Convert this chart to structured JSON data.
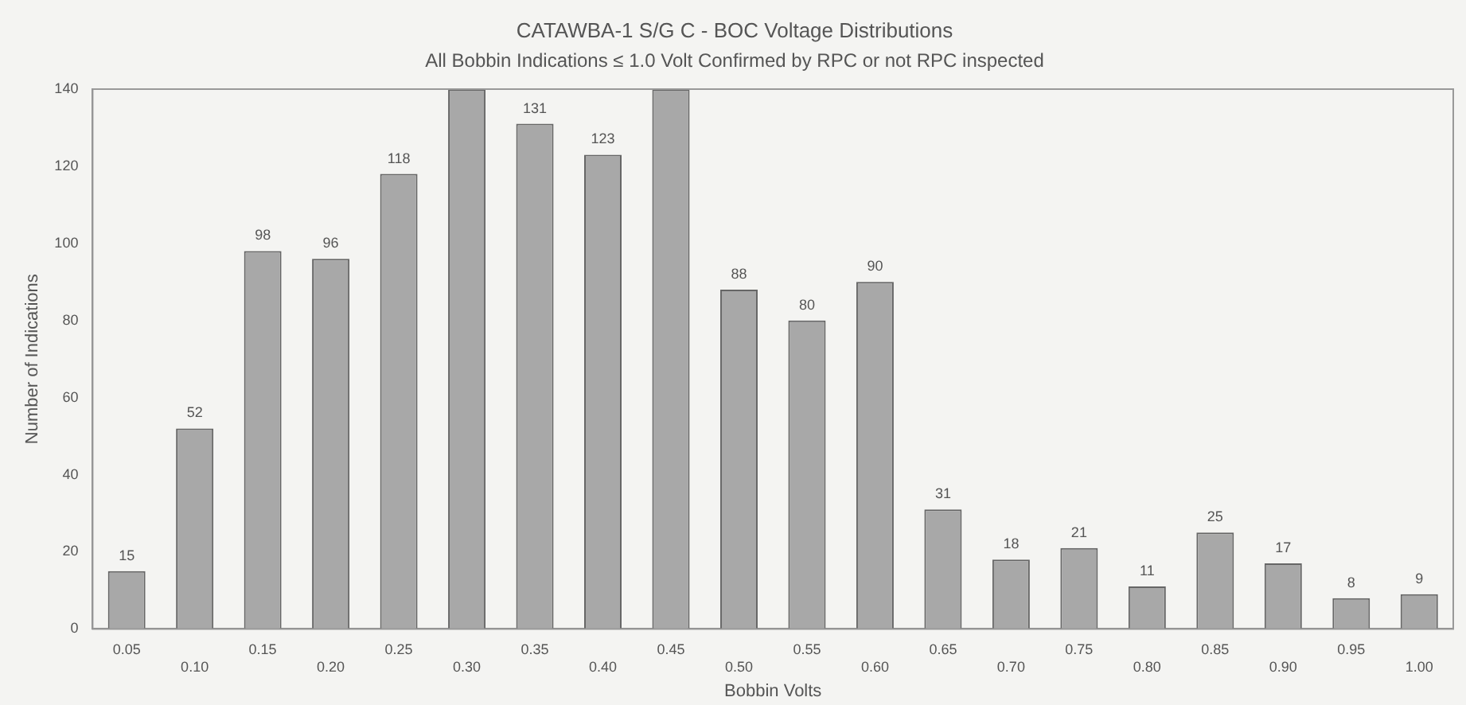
{
  "chart_data": {
    "type": "bar",
    "title": "CATAWBA-1 S/G C - BOC Voltage Distributions",
    "subtitle": "All Bobbin Indications ≤ 1.0 Volt Confirmed by RPC or not RPC inspected",
    "xlabel": "Bobbin Volts",
    "ylabel": "Number of Indications",
    "categories": [
      "0.05",
      "0.10",
      "0.15",
      "0.20",
      "0.25",
      "0.30",
      "0.35",
      "0.40",
      "0.45",
      "0.50",
      "0.55",
      "0.60",
      "0.65",
      "0.70",
      "0.75",
      "0.80",
      "0.85",
      "0.90",
      "0.95",
      "1.00"
    ],
    "values": [
      15,
      52,
      98,
      96,
      118,
      140,
      131,
      123,
      140,
      88,
      80,
      90,
      31,
      18,
      21,
      11,
      25,
      17,
      8,
      9
    ],
    "value_labels": [
      "15",
      "52",
      "98",
      "96",
      "118",
      null,
      "131",
      "123",
      null,
      "88",
      "80",
      "90",
      "31",
      "18",
      "21",
      "11",
      "25",
      "17",
      "8",
      "9"
    ],
    "color": "#a8a8a8",
    "ylim": [
      0,
      140
    ],
    "yticks": [
      0,
      20,
      40,
      60,
      80,
      100,
      120,
      140
    ],
    "grid": false,
    "legend": false
  }
}
